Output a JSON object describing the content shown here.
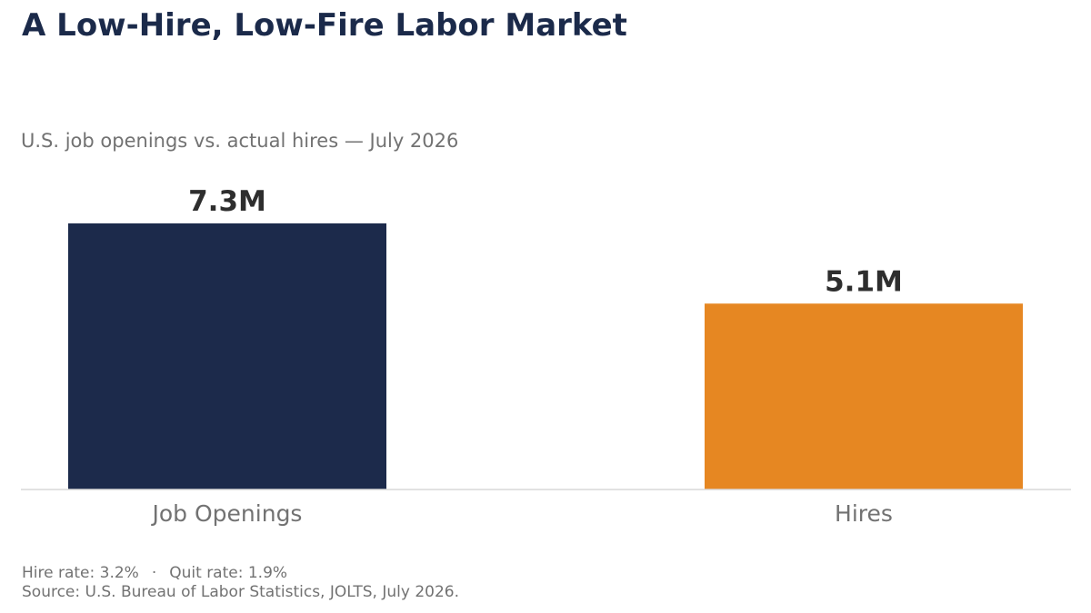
{
  "title": "A Low-Hire, Low-Fire Labor Market",
  "subtitle": "U.S. job openings vs. actual hires — July 2026",
  "footer": {
    "hire_rate": "Hire rate: 3.2%",
    "separator": "·",
    "quit_rate": "Quit rate: 1.9%",
    "source": "Source: U.S. Bureau of Labor Statistics, JOLTS, July 2026."
  },
  "colors": {
    "title": "#1b2a4a",
    "job_openings_bar": "#1c2a4b",
    "hires_bar": "#e68722",
    "value_label": "#2e2e2e",
    "muted_text": "#727272",
    "axis_line": "#d9d9d9"
  },
  "chart_data": {
    "type": "bar",
    "title": "A Low-Hire, Low-Fire Labor Market",
    "subtitle": "U.S. job openings vs. actual hires — July 2026",
    "categories": [
      "Job Openings",
      "Hires"
    ],
    "values": [
      7.3,
      5.1
    ],
    "value_labels": [
      "7.3M",
      "5.1M"
    ],
    "bar_colors": [
      "#1c2a4b",
      "#e68722"
    ],
    "ylim": [
      0,
      7.3
    ],
    "grid": false,
    "legend": "none",
    "xlabel": "",
    "ylabel": ""
  }
}
